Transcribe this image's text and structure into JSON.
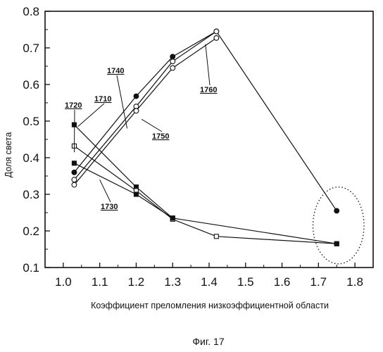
{
  "chart_data": {
    "type": "line",
    "title": "",
    "xlabel": "Коэффициент преломления низкоэффициентной области",
    "ylabel": "Доля света",
    "xlim": [
      0.95,
      1.85
    ],
    "ylim": [
      0.1,
      0.8
    ],
    "x_ticks": [
      "1.0",
      "1.1",
      "1.2",
      "1.3",
      "1.4",
      "1.5",
      "1.6",
      "1.7",
      "1.8"
    ],
    "y_ticks": [
      "0.1",
      "0.2",
      "0.3",
      "0.4",
      "0.5",
      "0.6",
      "0.7",
      "0.8"
    ],
    "grid": false,
    "legend": "none",
    "caption": "Фиг. 17",
    "series": [
      {
        "name": "1710",
        "marker": "filled-square",
        "points": [
          [
            1.03,
            0.49
          ],
          [
            1.2,
            0.32
          ],
          [
            1.3,
            0.235
          ]
        ]
      },
      {
        "name": "1720",
        "marker": "open-square",
        "points": [
          [
            1.03,
            0.432
          ],
          [
            1.2,
            0.31
          ],
          [
            1.3,
            0.232
          ],
          [
            1.42,
            0.185
          ],
          [
            1.75,
            0.165
          ]
        ]
      },
      {
        "name": "1730",
        "marker": "filled-square",
        "points": [
          [
            1.03,
            0.385
          ],
          [
            1.2,
            0.3
          ],
          [
            1.3,
            0.235
          ],
          [
            1.75,
            0.165
          ]
        ]
      },
      {
        "name": "1740",
        "marker": "filled-circle",
        "points": [
          [
            1.03,
            0.36
          ],
          [
            1.2,
            0.568
          ],
          [
            1.3,
            0.676
          ],
          [
            1.42,
            0.745
          ],
          [
            1.75,
            0.255
          ]
        ]
      },
      {
        "name": "1750",
        "marker": "open-circle",
        "points": [
          [
            1.03,
            0.34
          ],
          [
            1.2,
            0.54
          ],
          [
            1.3,
            0.663
          ],
          [
            1.42,
            0.745
          ]
        ]
      },
      {
        "name": "1760",
        "marker": "open-circle",
        "points": [
          [
            1.03,
            0.326
          ],
          [
            1.2,
            0.528
          ],
          [
            1.3,
            0.645
          ],
          [
            1.42,
            0.727
          ]
        ]
      }
    ],
    "highlight_ellipse": {
      "cx": 1.755,
      "cy": 0.215,
      "rx": 0.07,
      "ry": 0.105
    },
    "callouts": [
      {
        "series": "1740",
        "at": [
          1.175,
          0.48
        ]
      },
      {
        "series": "1750",
        "at": [
          1.215,
          0.505
        ]
      },
      {
        "series": "1760",
        "at": [
          1.39,
          0.71
        ]
      },
      {
        "series": "1710",
        "at": [
          1.04,
          0.485
        ]
      },
      {
        "series": "1720",
        "at": [
          1.03,
          0.415
        ]
      },
      {
        "series": "1730",
        "at": [
          1.1,
          0.34
        ]
      }
    ]
  }
}
